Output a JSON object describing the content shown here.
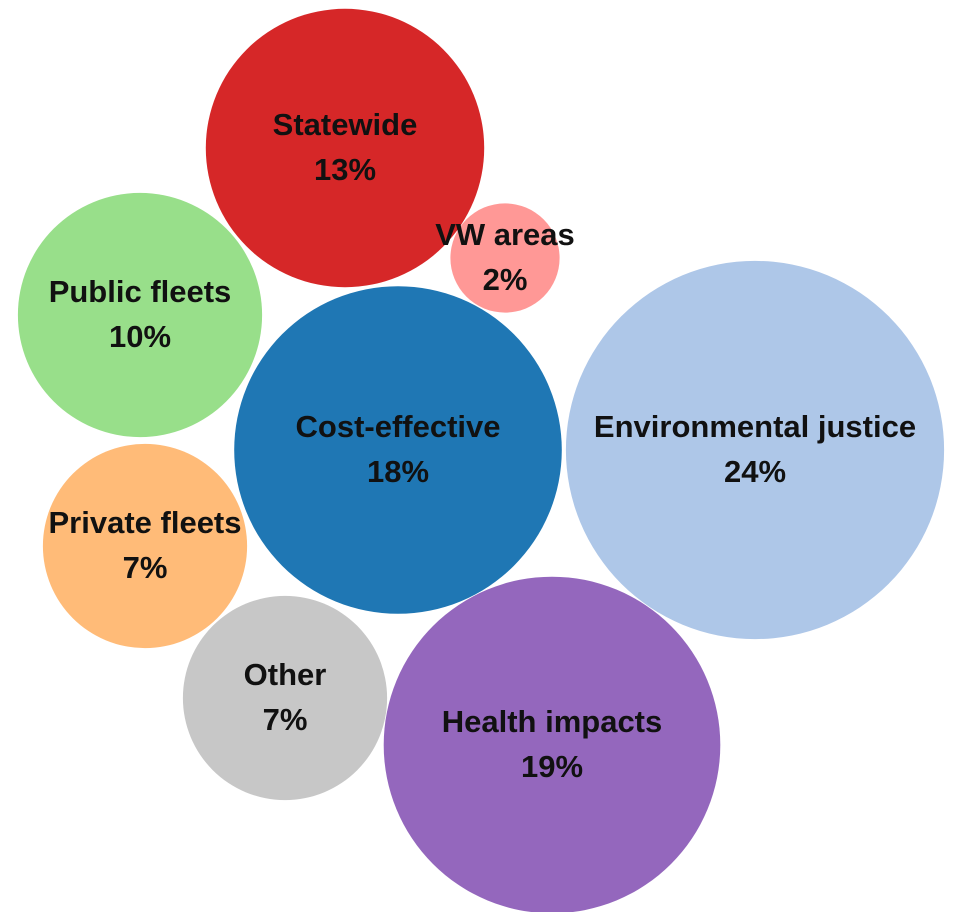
{
  "chart_data": {
    "type": "bubble",
    "title": "",
    "unit": "%",
    "bubbles": [
      {
        "label": "Statewide",
        "value": 13,
        "value_label": "13%",
        "color": "#d62728"
      },
      {
        "label": "VW areas",
        "value": 2,
        "value_label": "2%",
        "color": "#ff9896"
      },
      {
        "label": "Public fleets",
        "value": 10,
        "value_label": "10%",
        "color": "#98df8a"
      },
      {
        "label": "Cost-effective",
        "value": 18,
        "value_label": "18%",
        "color": "#1f77b4"
      },
      {
        "label": "Environmental justice",
        "value": 24,
        "value_label": "24%",
        "color": "#aec7e8"
      },
      {
        "label": "Private fleets",
        "value": 7,
        "value_label": "7%",
        "color": "#ffbb78"
      },
      {
        "label": "Other",
        "value": 7,
        "value_label": "7%",
        "color": "#c7c7c7"
      },
      {
        "label": "Health impacts",
        "value": 19,
        "value_label": "19%",
        "color": "#9467bd"
      }
    ]
  }
}
